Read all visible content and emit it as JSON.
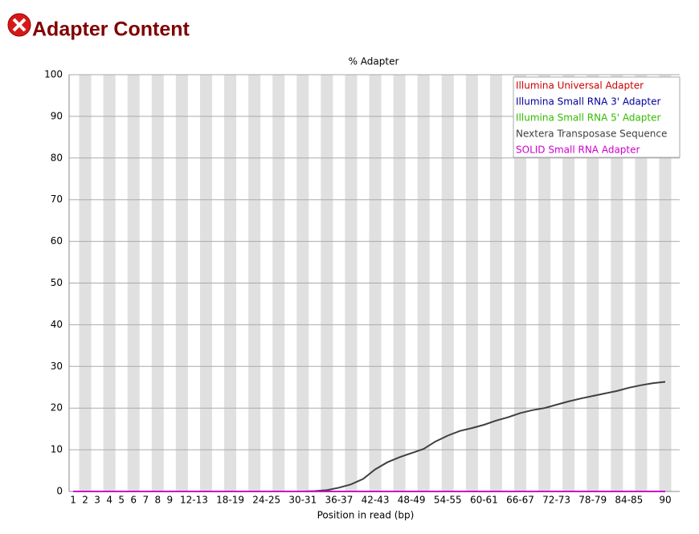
{
  "header": {
    "title": "Adapter Content"
  },
  "chart_data": {
    "type": "line",
    "title": "% Adapter",
    "x_label": "Position in read (bp)",
    "categories": [
      "1",
      "2",
      "3",
      "4",
      "5",
      "6",
      "7",
      "8",
      "9",
      null,
      "12-13",
      null,
      null,
      "18-19",
      null,
      null,
      "24-25",
      null,
      null,
      "30-31",
      null,
      null,
      "36-37",
      null,
      null,
      "42-43",
      null,
      null,
      "48-49",
      null,
      null,
      "54-55",
      null,
      null,
      "60-61",
      null,
      null,
      "66-67",
      null,
      null,
      "72-73",
      null,
      null,
      "78-79",
      null,
      null,
      "84-85",
      null,
      null,
      "90"
    ],
    "series": [
      {
        "name": "Illumina Universal Adapter",
        "color": "#cc0000",
        "values": [
          0,
          0,
          0,
          0,
          0,
          0,
          0,
          0,
          0,
          0,
          0,
          0,
          0,
          0,
          0,
          0,
          0,
          0,
          0,
          0,
          0,
          0,
          0,
          0,
          0,
          0,
          0,
          0,
          0,
          0,
          0,
          0,
          0,
          0,
          0,
          0,
          0,
          0,
          0,
          0,
          0,
          0,
          0,
          0,
          0,
          0,
          0,
          0,
          0,
          0
        ]
      },
      {
        "name": "Illumina Small RNA 3' Adapter",
        "color": "#000099",
        "values": [
          0,
          0,
          0,
          0,
          0,
          0,
          0,
          0,
          0,
          0,
          0,
          0,
          0,
          0,
          0,
          0,
          0,
          0,
          0,
          0,
          0,
          0,
          0,
          0,
          0,
          0,
          0,
          0,
          0,
          0,
          0,
          0,
          0,
          0,
          0,
          0,
          0,
          0,
          0,
          0,
          0,
          0,
          0,
          0,
          0,
          0,
          0,
          0,
          0,
          0
        ]
      },
      {
        "name": "Illumina Small RNA 5' Adapter",
        "color": "#33bb00",
        "values": [
          0,
          0,
          0,
          0,
          0,
          0,
          0,
          0,
          0,
          0,
          0,
          0,
          0,
          0,
          0,
          0,
          0,
          0,
          0,
          0,
          0,
          0,
          0,
          0,
          0,
          0,
          0,
          0,
          0,
          0,
          0,
          0,
          0,
          0,
          0,
          0,
          0,
          0,
          0,
          0,
          0,
          0,
          0,
          0,
          0,
          0,
          0,
          0,
          0,
          0
        ]
      },
      {
        "name": "Nextera Transposase Sequence",
        "color": "#404040",
        "values": [
          0,
          0,
          0,
          0,
          0,
          0,
          0,
          0,
          0,
          0,
          0,
          0,
          0,
          0,
          0,
          0,
          0,
          0,
          0,
          0,
          0.1,
          0.3,
          0.9,
          1.7,
          3.0,
          5.3,
          7.0,
          8.2,
          9.2,
          10.2,
          12.0,
          13.4,
          14.5,
          15.2,
          16.0,
          17.0,
          17.8,
          18.8,
          19.5,
          20.0,
          20.8,
          21.6,
          22.3,
          22.9,
          23.5,
          24.1,
          24.9,
          25.5,
          26.0,
          26.3
        ]
      },
      {
        "name": "SOLID Small RNA Adapter",
        "color": "#cc00cc",
        "values": [
          0,
          0,
          0,
          0,
          0,
          0,
          0,
          0,
          0,
          0,
          0,
          0,
          0,
          0,
          0,
          0,
          0,
          0,
          0,
          0,
          0,
          0,
          0,
          0,
          0,
          0,
          0,
          0,
          0,
          0,
          0,
          0,
          0,
          0,
          0,
          0,
          0,
          0,
          0,
          0,
          0,
          0,
          0,
          0,
          0,
          0,
          0,
          0,
          0,
          0
        ]
      }
    ],
    "ylim": [
      0,
      100
    ],
    "yticks": [
      0,
      10,
      20,
      30,
      40,
      50,
      60,
      70,
      80,
      90,
      100
    ],
    "grid": true,
    "legend": "top-right"
  }
}
